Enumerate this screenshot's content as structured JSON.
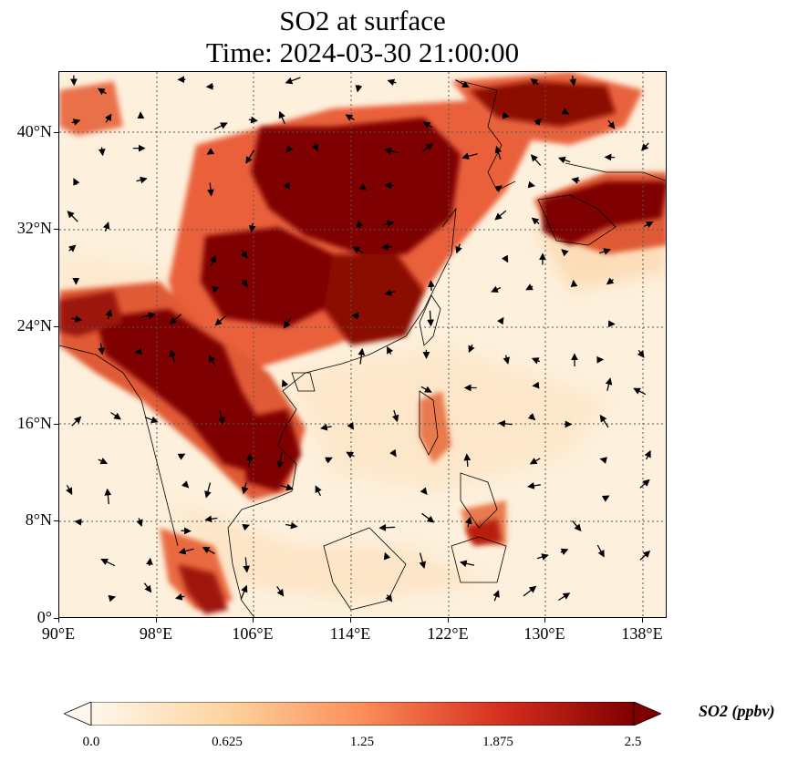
{
  "title": {
    "line1": "SO2 at surface",
    "line2": "Time: 2024-03-30 21:00:00"
  },
  "axes": {
    "x_ticks": [
      "90°E",
      "98°E",
      "106°E",
      "114°E",
      "122°E",
      "130°E",
      "138°E"
    ],
    "y_ticks": [
      "40°N",
      "32°N",
      "24°N",
      "16°N",
      "8°N",
      "0°"
    ],
    "lon_range": [
      90,
      140
    ],
    "lat_range": [
      0,
      45
    ],
    "gridlines": "dotted"
  },
  "colorbar": {
    "label": "SO2 (ppbv)",
    "ticks": [
      "0.0",
      "0.625",
      "1.25",
      "1.875",
      "2.5"
    ],
    "range": [
      0,
      2.5
    ],
    "extend": "both",
    "colormap": [
      "#fff7ec",
      "#fdd49e",
      "#fc8d59",
      "#d7301f",
      "#7f0000"
    ]
  },
  "map_layers": {
    "variable": "SO2",
    "level": "surface",
    "vectors": "wind arrows",
    "high_concentration_color": "#7f0000",
    "background_color": "#fdf0dc"
  }
}
